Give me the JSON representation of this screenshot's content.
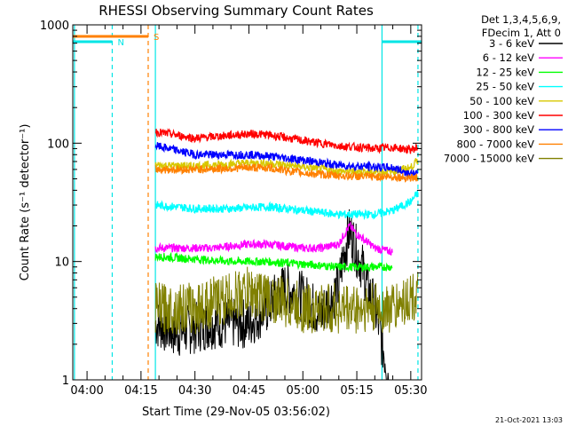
{
  "chart_data": {
    "type": "line",
    "title": "RHESSI Observing Summary Count Rates",
    "xlabel": "Start Time (29-Nov-05 03:56:02)",
    "ylabel": "Count Rate (s⁻¹ detector⁻¹)",
    "y_scale": "log",
    "ylim": [
      1,
      1000
    ],
    "xlim": [
      "03:56:02",
      "05:33:00"
    ],
    "x_ticks": [
      "04:00",
      "04:15",
      "04:30",
      "04:45",
      "05:00",
      "05:15",
      "05:30"
    ],
    "y_ticks": [
      "1",
      "10",
      "100",
      "1000"
    ],
    "legend_header": [
      "Det 1,3,4,5,6,9,",
      "FDecim 1, Att 0"
    ],
    "legend_placement": "right",
    "footer": "21-Oct-2021 13:03",
    "flags": [
      {
        "label": "N",
        "color": "#00e5e5",
        "segments": [
          [
            "03:56:02",
            "04:07"
          ],
          [
            "05:22",
            "05:33"
          ]
        ]
      },
      {
        "label": "S",
        "color": "#ff8000",
        "segments": [
          [
            "03:56:02",
            "04:17"
          ]
        ]
      }
    ],
    "vlines": [
      {
        "time": "03:56:30",
        "color": "#00e5e5",
        "style": "solid"
      },
      {
        "time": "04:07",
        "color": "#00e5e5",
        "style": "dashed"
      },
      {
        "time": "04:17",
        "color": "#ff8000",
        "style": "dashed"
      },
      {
        "time": "04:19",
        "color": "#00e5e5",
        "style": "solid"
      },
      {
        "time": "05:22",
        "color": "#00e5e5",
        "style": "solid"
      },
      {
        "time": "05:32",
        "color": "#00e5e5",
        "style": "dashed"
      }
    ],
    "series": [
      {
        "name": "3 - 6 keV",
        "color": "#000000",
        "x": [
          "04:19",
          "04:25",
          "04:35",
          "04:45",
          "04:50",
          "04:55",
          "05:00",
          "05:05",
          "05:10",
          "05:13",
          "05:15",
          "05:18",
          "05:20",
          "05:22",
          "05:24"
        ],
        "y": [
          3,
          2.5,
          3,
          3,
          4,
          6,
          5,
          3.5,
          6,
          18,
          12,
          6,
          4,
          2,
          1
        ]
      },
      {
        "name": "6 - 12 keV",
        "color": "#ff00ff",
        "x": [
          "04:19",
          "04:25",
          "04:35",
          "04:45",
          "04:50",
          "05:00",
          "05:05",
          "05:10",
          "05:13",
          "05:15",
          "05:20",
          "05:25"
        ],
        "y": [
          13,
          13,
          13,
          14,
          14,
          13,
          13,
          14,
          20,
          17,
          13,
          12
        ]
      },
      {
        "name": "12 - 25 keV",
        "color": "#00ff00",
        "x": [
          "04:19",
          "04:30",
          "04:40",
          "04:50",
          "05:00",
          "05:10",
          "05:20",
          "05:25"
        ],
        "y": [
          11,
          10.5,
          10,
          10,
          9.5,
          9,
          9,
          9
        ]
      },
      {
        "name": "25 - 50 keV",
        "color": "#00ffff",
        "x": [
          "04:19",
          "04:30",
          "04:40",
          "04:50",
          "05:00",
          "05:10",
          "05:20",
          "05:25",
          "05:30",
          "05:32"
        ],
        "y": [
          30,
          28,
          28,
          29,
          27,
          25,
          25,
          27,
          32,
          38
        ]
      },
      {
        "name": "50 - 100 keV",
        "color": "#d8c800",
        "x": [
          "04:19",
          "04:30",
          "04:45",
          "04:50",
          "05:00",
          "05:10",
          "05:20",
          "05:25",
          "05:30",
          "05:32"
        ],
        "y": [
          65,
          64,
          68,
          68,
          63,
          58,
          57,
          58,
          62,
          72
        ]
      },
      {
        "name": "100 - 300 keV",
        "color": "#ff0000",
        "x": [
          "04:19",
          "04:30",
          "04:45",
          "04:50",
          "05:00",
          "05:10",
          "05:20",
          "05:25",
          "05:30",
          "05:32"
        ],
        "y": [
          125,
          110,
          120,
          118,
          105,
          95,
          90,
          92,
          88,
          92
        ]
      },
      {
        "name": "300 - 800 keV",
        "color": "#0000ff",
        "x": [
          "04:19",
          "04:30",
          "04:45",
          "04:50",
          "05:00",
          "05:10",
          "05:20",
          "05:25",
          "05:30",
          "05:32"
        ],
        "y": [
          95,
          80,
          80,
          78,
          72,
          65,
          63,
          62,
          55,
          55
        ]
      },
      {
        "name": "800 - 7000 keV",
        "color": "#ff8000",
        "x": [
          "04:19",
          "04:30",
          "04:45",
          "04:50",
          "05:00",
          "05:10",
          "05:20",
          "05:25",
          "05:30",
          "05:32"
        ],
        "y": [
          60,
          60,
          62,
          62,
          56,
          53,
          52,
          52,
          51,
          51
        ]
      },
      {
        "name": "7000 - 15000 keV",
        "color": "#808000",
        "x": [
          "04:19",
          "04:30",
          "04:40",
          "04:45",
          "04:50",
          "05:00",
          "05:10",
          "05:20",
          "05:25",
          "05:30",
          "05:32"
        ],
        "y": [
          4,
          4,
          5,
          5.5,
          5,
          4,
          4,
          4,
          4,
          5,
          5
        ]
      }
    ]
  }
}
